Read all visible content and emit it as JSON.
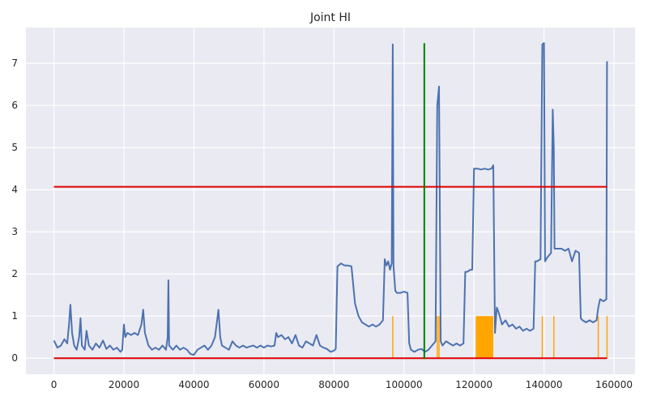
{
  "chart_data": {
    "type": "line",
    "title": "Joint HI",
    "xlabel": "",
    "ylabel": "",
    "xlim": [
      -8000,
      166000
    ],
    "ylim": [
      -0.38,
      7.85
    ],
    "grid": true,
    "x_ticks": [
      0,
      20000,
      40000,
      60000,
      80000,
      100000,
      120000,
      140000,
      160000
    ],
    "x_tick_labels": [
      "0",
      "20000",
      "40000",
      "60000",
      "80000",
      "100000",
      "120000",
      "140000",
      "160000"
    ],
    "y_ticks": [
      0,
      1,
      2,
      3,
      4,
      5,
      6,
      7
    ],
    "y_tick_labels": [
      "0",
      "1",
      "2",
      "3",
      "4",
      "5",
      "6",
      "7"
    ],
    "colors": {
      "background": "#EAEAF2",
      "grid": "#FFFFFF",
      "hi": "#4C72B0",
      "threshold": "#E00000",
      "anomaly": "#FFA500",
      "marker": "#008000"
    },
    "series": [
      {
        "role": "hi",
        "points": [
          [
            0,
            0.42
          ],
          [
            1000,
            0.25
          ],
          [
            2000,
            0.3
          ],
          [
            3000,
            0.45
          ],
          [
            3800,
            0.35
          ],
          [
            4300,
            0.8
          ],
          [
            4700,
            1.27
          ],
          [
            5200,
            0.6
          ],
          [
            5800,
            0.3
          ],
          [
            6500,
            0.2
          ],
          [
            7200,
            0.5
          ],
          [
            7600,
            0.95
          ],
          [
            8000,
            0.3
          ],
          [
            8800,
            0.2
          ],
          [
            9300,
            0.65
          ],
          [
            10000,
            0.3
          ],
          [
            11000,
            0.2
          ],
          [
            12000,
            0.35
          ],
          [
            13000,
            0.25
          ],
          [
            14000,
            0.42
          ],
          [
            15000,
            0.22
          ],
          [
            16000,
            0.3
          ],
          [
            17000,
            0.2
          ],
          [
            18000,
            0.25
          ],
          [
            19000,
            0.15
          ],
          [
            19500,
            0.2
          ],
          [
            20000,
            0.8
          ],
          [
            20400,
            0.5
          ],
          [
            21000,
            0.6
          ],
          [
            22000,
            0.55
          ],
          [
            23000,
            0.6
          ],
          [
            24000,
            0.55
          ],
          [
            25000,
            0.8
          ],
          [
            25500,
            1.15
          ],
          [
            26000,
            0.6
          ],
          [
            27000,
            0.3
          ],
          [
            28000,
            0.2
          ],
          [
            29000,
            0.25
          ],
          [
            30000,
            0.2
          ],
          [
            31000,
            0.3
          ],
          [
            32000,
            0.2
          ],
          [
            32500,
            0.5
          ],
          [
            32700,
            1.85
          ],
          [
            32900,
            0.3
          ],
          [
            34000,
            0.2
          ],
          [
            35000,
            0.3
          ],
          [
            36000,
            0.2
          ],
          [
            37000,
            0.25
          ],
          [
            38000,
            0.2
          ],
          [
            39000,
            0.1
          ],
          [
            40000,
            0.08
          ],
          [
            41000,
            0.2
          ],
          [
            42000,
            0.25
          ],
          [
            43000,
            0.3
          ],
          [
            44000,
            0.2
          ],
          [
            45000,
            0.3
          ],
          [
            46000,
            0.5
          ],
          [
            47000,
            1.15
          ],
          [
            47500,
            0.5
          ],
          [
            48000,
            0.3
          ],
          [
            49000,
            0.25
          ],
          [
            50000,
            0.2
          ],
          [
            51000,
            0.4
          ],
          [
            52000,
            0.3
          ],
          [
            53000,
            0.25
          ],
          [
            54000,
            0.3
          ],
          [
            55000,
            0.25
          ],
          [
            56000,
            0.28
          ],
          [
            57000,
            0.3
          ],
          [
            58000,
            0.25
          ],
          [
            59000,
            0.3
          ],
          [
            60000,
            0.25
          ],
          [
            61000,
            0.3
          ],
          [
            62000,
            0.28
          ],
          [
            63000,
            0.3
          ],
          [
            63500,
            0.6
          ],
          [
            64000,
            0.5
          ],
          [
            65000,
            0.55
          ],
          [
            66000,
            0.45
          ],
          [
            67000,
            0.5
          ],
          [
            68000,
            0.35
          ],
          [
            69000,
            0.55
          ],
          [
            70000,
            0.3
          ],
          [
            71000,
            0.25
          ],
          [
            72000,
            0.4
          ],
          [
            73000,
            0.35
          ],
          [
            74000,
            0.3
          ],
          [
            75000,
            0.55
          ],
          [
            76000,
            0.3
          ],
          [
            77000,
            0.25
          ],
          [
            78000,
            0.22
          ],
          [
            79000,
            0.15
          ],
          [
            80000,
            0.18
          ],
          [
            80500,
            0.22
          ],
          [
            81000,
            2.18
          ],
          [
            82000,
            2.25
          ],
          [
            83000,
            2.2
          ],
          [
            84000,
            2.2
          ],
          [
            85000,
            2.18
          ],
          [
            86000,
            1.3
          ],
          [
            87000,
            1.0
          ],
          [
            88000,
            0.85
          ],
          [
            89000,
            0.8
          ],
          [
            90000,
            0.75
          ],
          [
            91000,
            0.8
          ],
          [
            92000,
            0.75
          ],
          [
            93000,
            0.8
          ],
          [
            94000,
            0.9
          ],
          [
            94500,
            2.35
          ],
          [
            95000,
            2.2
          ],
          [
            95500,
            2.3
          ],
          [
            96000,
            2.1
          ],
          [
            96500,
            2.25
          ],
          [
            96800,
            7.45
          ],
          [
            97000,
            2.2
          ],
          [
            97500,
            1.6
          ],
          [
            98000,
            1.55
          ],
          [
            99000,
            1.55
          ],
          [
            100000,
            1.58
          ],
          [
            101000,
            1.55
          ],
          [
            101500,
            0.35
          ],
          [
            102000,
            0.2
          ],
          [
            103000,
            0.15
          ],
          [
            104000,
            0.2
          ],
          [
            105000,
            0.22
          ],
          [
            106000,
            0.15
          ],
          [
            107000,
            0.2
          ],
          [
            108000,
            0.3
          ],
          [
            109000,
            0.4
          ],
          [
            109500,
            6.0
          ],
          [
            110000,
            6.45
          ],
          [
            110500,
            0.4
          ],
          [
            111000,
            0.3
          ],
          [
            112000,
            0.4
          ],
          [
            113000,
            0.35
          ],
          [
            114000,
            0.3
          ],
          [
            115000,
            0.35
          ],
          [
            116000,
            0.3
          ],
          [
            117000,
            0.35
          ],
          [
            117500,
            2.05
          ],
          [
            118000,
            2.05
          ],
          [
            119000,
            2.1
          ],
          [
            119500,
            2.1
          ],
          [
            120000,
            4.5
          ],
          [
            121000,
            4.5
          ],
          [
            122000,
            4.48
          ],
          [
            123000,
            4.5
          ],
          [
            124000,
            4.48
          ],
          [
            125000,
            4.5
          ],
          [
            125500,
            4.58
          ],
          [
            126000,
            0.6
          ],
          [
            126500,
            1.2
          ],
          [
            127000,
            1.1
          ],
          [
            128000,
            0.8
          ],
          [
            129000,
            0.9
          ],
          [
            130000,
            0.75
          ],
          [
            131000,
            0.8
          ],
          [
            132000,
            0.7
          ],
          [
            133000,
            0.75
          ],
          [
            134000,
            0.65
          ],
          [
            135000,
            0.7
          ],
          [
            136000,
            0.65
          ],
          [
            137000,
            0.7
          ],
          [
            137500,
            2.3
          ],
          [
            138000,
            2.3
          ],
          [
            139000,
            2.35
          ],
          [
            139500,
            7.45
          ],
          [
            140000,
            7.48
          ],
          [
            140300,
            2.3
          ],
          [
            141000,
            2.4
          ],
          [
            142000,
            2.5
          ],
          [
            142500,
            5.9
          ],
          [
            142800,
            5.0
          ],
          [
            143000,
            2.6
          ],
          [
            144000,
            2.6
          ],
          [
            145000,
            2.6
          ],
          [
            146000,
            2.55
          ],
          [
            147000,
            2.6
          ],
          [
            148000,
            2.3
          ],
          [
            149000,
            2.55
          ],
          [
            150000,
            2.5
          ],
          [
            150500,
            0.95
          ],
          [
            151000,
            0.9
          ],
          [
            152000,
            0.85
          ],
          [
            153000,
            0.9
          ],
          [
            154000,
            0.85
          ],
          [
            155000,
            0.9
          ],
          [
            155500,
            1.2
          ],
          [
            156000,
            1.4
          ],
          [
            157000,
            1.35
          ],
          [
            157800,
            1.4
          ],
          [
            158000,
            7.05
          ]
        ]
      },
      {
        "role": "anomaly",
        "spikes": [
          96800,
          109500,
          110000,
          139500,
          142800,
          155500,
          158000
        ],
        "block": {
          "x0": 120500,
          "x1": 125500,
          "y": 1.0
        }
      }
    ],
    "hlines": [
      {
        "role": "upper-threshold",
        "y": 4.07,
        "x0": 0,
        "x1": 158000
      },
      {
        "role": "lower-threshold",
        "y": 0.0,
        "x0": 0,
        "x1": 158000
      }
    ],
    "vlines": [
      {
        "role": "marker",
        "x": 105800,
        "y0": -0.02,
        "y1": 7.48
      }
    ]
  }
}
